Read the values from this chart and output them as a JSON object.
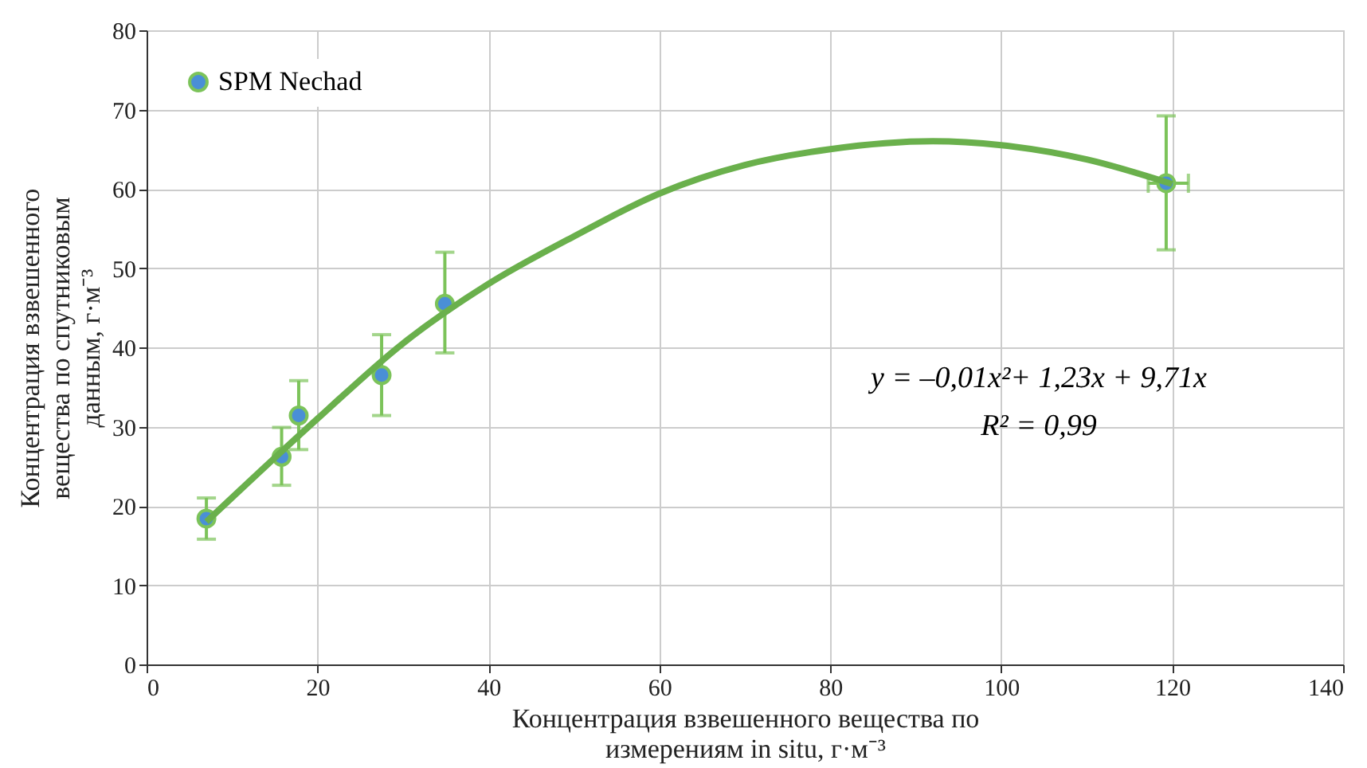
{
  "chart_data": {
    "type": "scatter",
    "xlabel": "Концентрация взвешенного вещества по измерениям in situ, г·м⁻³",
    "ylabel": "Концентрация взвешенного вещества по спутниковым данным, г·м⁻³",
    "xlim": [
      0,
      140
    ],
    "xticks": [
      0,
      20,
      40,
      60,
      80,
      100,
      120,
      140
    ],
    "ylim": [
      0,
      80
    ],
    "yticks": [
      0,
      10,
      20,
      30,
      40,
      50,
      60,
      70,
      80
    ],
    "grid": true,
    "legend": "top left",
    "marker": "circle",
    "series": [
      {
        "name": "SPM Nechad",
        "color": "#4a8fd6",
        "x": [
          7.0,
          15.8,
          17.8,
          27.5,
          34.9,
          119.3
        ],
        "values": [
          18.4,
          26.2,
          31.4,
          36.5,
          45.5,
          60.7
        ],
        "errors": [
          [
            15.8,
            21.0
          ],
          [
            22.6,
            29.9
          ],
          [
            27.1,
            35.8
          ],
          [
            31.4,
            41.6
          ],
          [
            39.3,
            52.0
          ],
          [
            52.3,
            69.2
          ]
        ],
        "xerrors": [
          null,
          null,
          null,
          null,
          null,
          [
            117.2,
            121.9
          ]
        ]
      },
      {
        "type": "line",
        "line_style": "solid",
        "marker": "none",
        "color": "#6ab04c",
        "x": [
          7,
          20,
          30,
          40,
          50,
          60,
          70,
          80,
          92,
          100,
          110,
          120
        ],
        "values": [
          18.0,
          31.0,
          40.5,
          48.0,
          54.0,
          59.4,
          63.0,
          65.0,
          66.0,
          65.5,
          63.7,
          60.6
        ]
      }
    ],
    "annotations": [
      "y = –0,01x²+ 1,23x + 9,71x",
      "R² = 0,99"
    ]
  }
}
